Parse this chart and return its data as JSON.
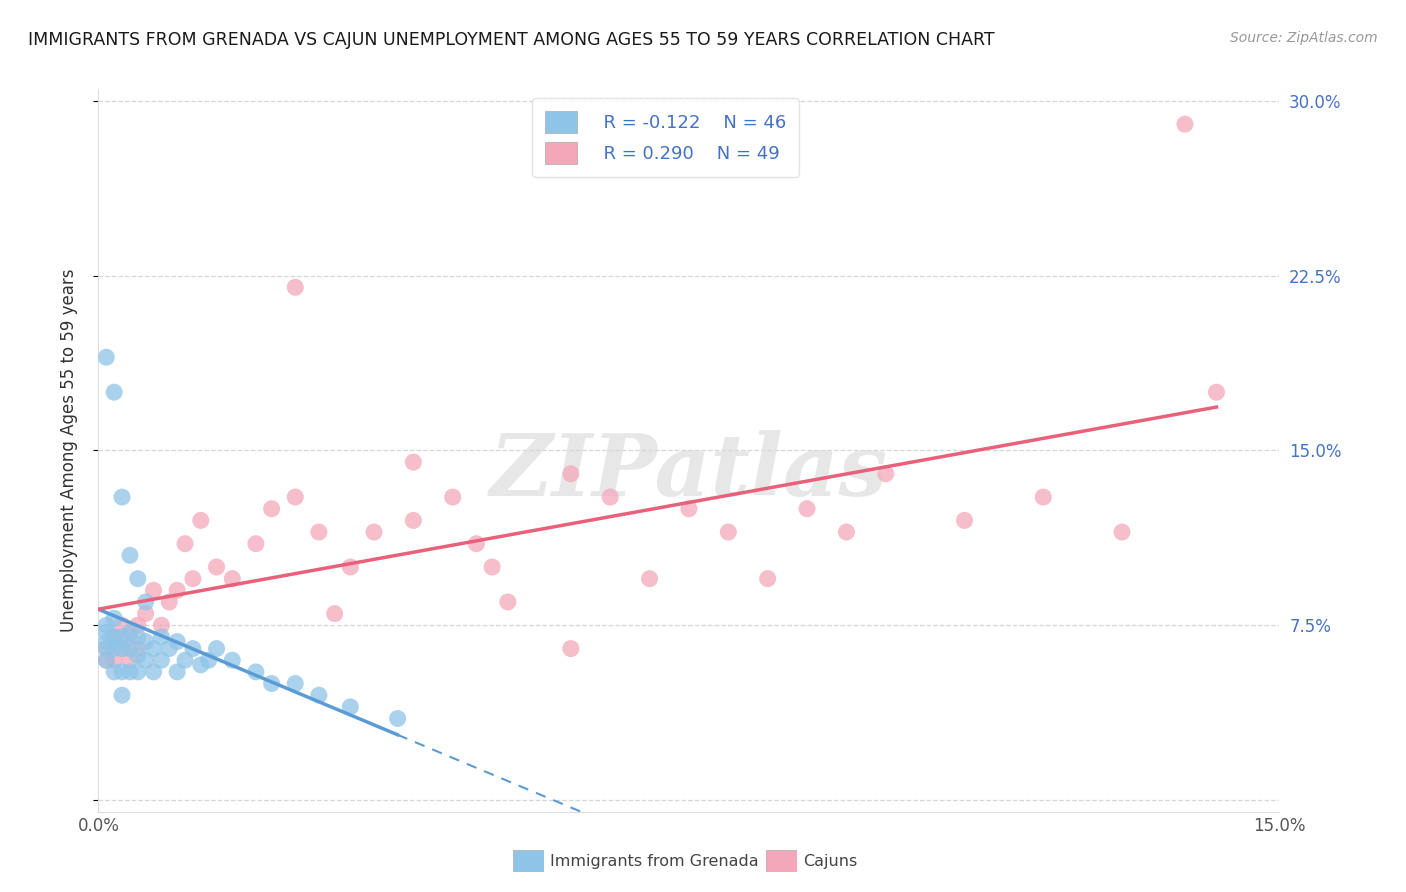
{
  "title": "IMMIGRANTS FROM GRENADA VS CAJUN UNEMPLOYMENT AMONG AGES 55 TO 59 YEARS CORRELATION CHART",
  "source": "Source: ZipAtlas.com",
  "ylabel": "Unemployment Among Ages 55 to 59 years",
  "xlim": [
    0.0,
    0.15
  ],
  "ylim": [
    -0.005,
    0.305
  ],
  "yticks": [
    0.0,
    0.075,
    0.15,
    0.225,
    0.3
  ],
  "ytick_labels_right": [
    "",
    "7.5%",
    "15.0%",
    "22.5%",
    "30.0%"
  ],
  "grid_color": "#cccccc",
  "background_color": "#ffffff",
  "watermark": "ZIPatlas",
  "legend_label1": "Immigrants from Grenada",
  "legend_label2": "Cajuns",
  "legend_R1": "R = -0.122",
  "legend_N1": "N = 46",
  "legend_R2": "R = 0.290",
  "legend_N2": "N = 49",
  "color_blue": "#8ec4e8",
  "color_blue_line": "#5b9bd5",
  "color_pink": "#f4a7b9",
  "color_pink_line": "#e8607a",
  "color_legend_text": "#4472c4",
  "blue_scatter_x": [
    0.001,
    0.001,
    0.001,
    0.001,
    0.001,
    0.002,
    0.002,
    0.002,
    0.002,
    0.003,
    0.003,
    0.003,
    0.003,
    0.004,
    0.004,
    0.004,
    0.005,
    0.005,
    0.005,
    0.006,
    0.006,
    0.007,
    0.007,
    0.008,
    0.008,
    0.009,
    0.01,
    0.01,
    0.011,
    0.012,
    0.013,
    0.014,
    0.015,
    0.017,
    0.02,
    0.022,
    0.025,
    0.028,
    0.032,
    0.038,
    0.001,
    0.002,
    0.003,
    0.004,
    0.005,
    0.006
  ],
  "blue_scatter_y": [
    0.075,
    0.072,
    0.068,
    0.065,
    0.06,
    0.078,
    0.07,
    0.065,
    0.055,
    0.07,
    0.065,
    0.055,
    0.045,
    0.072,
    0.065,
    0.055,
    0.07,
    0.062,
    0.055,
    0.068,
    0.06,
    0.065,
    0.055,
    0.07,
    0.06,
    0.065,
    0.068,
    0.055,
    0.06,
    0.065,
    0.058,
    0.06,
    0.065,
    0.06,
    0.055,
    0.05,
    0.05,
    0.045,
    0.04,
    0.035,
    0.19,
    0.175,
    0.13,
    0.105,
    0.095,
    0.085
  ],
  "pink_scatter_x": [
    0.001,
    0.001,
    0.002,
    0.002,
    0.003,
    0.003,
    0.004,
    0.004,
    0.005,
    0.005,
    0.006,
    0.007,
    0.008,
    0.009,
    0.01,
    0.011,
    0.012,
    0.013,
    0.015,
    0.017,
    0.02,
    0.022,
    0.025,
    0.028,
    0.032,
    0.035,
    0.04,
    0.045,
    0.048,
    0.052,
    0.06,
    0.065,
    0.07,
    0.075,
    0.08,
    0.085,
    0.09,
    0.095,
    0.1,
    0.11,
    0.12,
    0.13,
    0.138,
    0.142,
    0.04,
    0.05,
    0.06,
    0.025,
    0.03
  ],
  "pink_scatter_y": [
    0.065,
    0.06,
    0.07,
    0.06,
    0.075,
    0.065,
    0.07,
    0.06,
    0.075,
    0.065,
    0.08,
    0.09,
    0.075,
    0.085,
    0.09,
    0.11,
    0.095,
    0.12,
    0.1,
    0.095,
    0.11,
    0.125,
    0.13,
    0.115,
    0.1,
    0.115,
    0.12,
    0.13,
    0.11,
    0.085,
    0.14,
    0.13,
    0.095,
    0.125,
    0.115,
    0.095,
    0.125,
    0.115,
    0.14,
    0.12,
    0.13,
    0.115,
    0.29,
    0.175,
    0.145,
    0.1,
    0.065,
    0.22,
    0.08
  ],
  "blue_line_x0": 0.0,
  "blue_line_x_solid_end": 0.038,
  "blue_line_x_dash_end": 0.15,
  "blue_line_y0": 0.075,
  "blue_line_slope": -0.8,
  "pink_line_x0": 0.0,
  "pink_line_x_end": 0.15,
  "pink_line_y0": 0.072,
  "pink_line_slope": 0.53
}
